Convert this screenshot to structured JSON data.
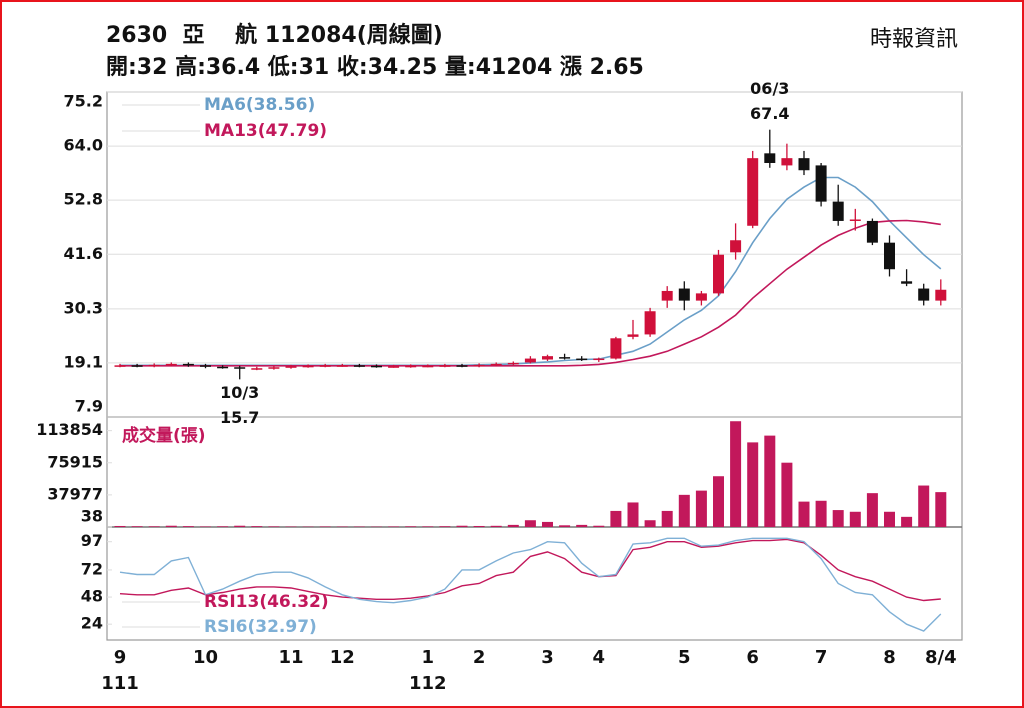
{
  "header": {
    "title": "2630  亞    航 112084(周線圖)",
    "stats": "開:32 高:36.4 低:31 收:34.25 量:41204 漲 2.65",
    "source": "時報資訊"
  },
  "chart_data": [
    {
      "type": "candlestick",
      "categories": [
        "9",
        null,
        null,
        null,
        null,
        "10",
        null,
        null,
        null,
        null,
        "11",
        null,
        null,
        "12",
        null,
        null,
        null,
        null,
        "1",
        null,
        null,
        "2",
        null,
        null,
        null,
        "3",
        null,
        null,
        "4",
        null,
        null,
        null,
        null,
        "5",
        null,
        null,
        null,
        "6",
        null,
        null,
        null,
        "7",
        null,
        null,
        null,
        "8",
        null,
        null,
        "8/4"
      ],
      "category_years": [
        "111",
        null,
        null,
        null,
        null,
        null,
        null,
        null,
        null,
        null,
        null,
        null,
        null,
        null,
        null,
        null,
        null,
        null,
        "112",
        null,
        null,
        null,
        null,
        null,
        null,
        null,
        null,
        null,
        null,
        null,
        null,
        null,
        null,
        null,
        null,
        null,
        null,
        null,
        null,
        null,
        null,
        null,
        null,
        null,
        null,
        null,
        null,
        null,
        null
      ],
      "open": [
        18.5,
        18.6,
        18.5,
        18.7,
        18.9,
        18.6,
        18.3,
        18.2,
        17.9,
        18.0,
        18.2,
        18.4,
        18.5,
        18.6,
        18.6,
        18.5,
        18.4,
        18.4,
        18.5,
        18.5,
        18.6,
        18.5,
        18.7,
        18.9,
        19.2,
        19.8,
        20.3,
        20.0,
        19.8,
        20.0,
        24.5,
        25.0,
        32.0,
        34.5,
        32.0,
        33.5,
        42.0,
        47.5,
        62.5,
        60.0,
        61.5,
        60.0,
        52.5,
        48.5,
        48.5,
        44.0,
        36.0,
        34.5,
        32
      ],
      "high": [
        18.9,
        18.9,
        19.0,
        19.2,
        19.2,
        18.9,
        18.6,
        18.5,
        18.3,
        18.5,
        18.7,
        18.8,
        18.9,
        18.9,
        18.9,
        18.8,
        18.7,
        18.8,
        18.8,
        18.9,
        18.9,
        19.0,
        19.2,
        19.4,
        20.5,
        20.8,
        21.0,
        20.5,
        20.2,
        24.5,
        28.0,
        30.5,
        35.0,
        36.0,
        34.0,
        42.5,
        48.0,
        63.0,
        67.4,
        64.5,
        63.0,
        60.5,
        56.0,
        51.0,
        49.0,
        45.5,
        38.5,
        35.5,
        36.4
      ],
      "low": [
        18.2,
        18.2,
        18.2,
        18.4,
        18.3,
        18.0,
        17.9,
        15.7,
        17.6,
        17.7,
        17.9,
        18.1,
        18.2,
        18.3,
        18.2,
        18.1,
        18.1,
        18.1,
        18.2,
        18.2,
        18.2,
        18.2,
        18.4,
        18.6,
        19.0,
        19.5,
        19.8,
        19.5,
        19.3,
        19.8,
        24.0,
        24.5,
        30.5,
        30.0,
        31.0,
        33.0,
        40.5,
        47.0,
        59.5,
        59.0,
        58.0,
        51.5,
        47.5,
        46.5,
        43.5,
        37.0,
        35.0,
        31.0,
        31
      ],
      "close": [
        18.6,
        18.5,
        18.7,
        18.9,
        18.6,
        18.3,
        18.2,
        17.9,
        18.0,
        18.2,
        18.4,
        18.5,
        18.6,
        18.6,
        18.5,
        18.4,
        18.4,
        18.5,
        18.5,
        18.6,
        18.5,
        18.7,
        18.9,
        19.1,
        20.0,
        20.5,
        20.2,
        19.8,
        20.0,
        24.2,
        25.0,
        29.8,
        34.0,
        32.0,
        33.5,
        41.5,
        44.5,
        61.5,
        60.5,
        61.5,
        59.0,
        52.5,
        48.5,
        48.8,
        44.0,
        38.5,
        35.5,
        32.0,
        34.25
      ],
      "up_color": "#d0103a",
      "down_color": "#111111",
      "series": [
        {
          "name": "MA6(38.56)",
          "color": "#6a9fc8",
          "values": [
            18.6,
            18.6,
            18.6,
            18.6,
            18.6,
            18.6,
            18.6,
            18.6,
            18.6,
            18.6,
            18.6,
            18.6,
            18.6,
            18.6,
            18.6,
            18.6,
            18.6,
            18.6,
            18.6,
            18.6,
            18.6,
            18.7,
            18.8,
            18.9,
            19.1,
            19.3,
            19.6,
            19.8,
            19.9,
            20.7,
            21.5,
            23,
            25.5,
            28,
            30,
            33,
            38,
            44,
            49,
            53,
            55.5,
            57.5,
            57.5,
            55.5,
            52.5,
            48.5,
            45,
            41.5,
            38.56
          ]
        },
        {
          "name": "MA13(47.79)",
          "color": "#c2185b",
          "values": [
            18.5,
            18.5,
            18.5,
            18.5,
            18.5,
            18.5,
            18.5,
            18.5,
            18.5,
            18.5,
            18.5,
            18.5,
            18.5,
            18.5,
            18.5,
            18.5,
            18.5,
            18.5,
            18.5,
            18.5,
            18.5,
            18.5,
            18.5,
            18.5,
            18.5,
            18.5,
            18.5,
            18.6,
            18.8,
            19.2,
            19.8,
            20.5,
            21.5,
            23,
            24.5,
            26.5,
            29,
            32.5,
            35.5,
            38.5,
            41,
            43.5,
            45.5,
            47,
            48.2,
            48.5,
            48.6,
            48.3,
            47.79
          ]
        }
      ],
      "annotations": [
        {
          "date": "06/3",
          "price": 67.4,
          "at": "high"
        },
        {
          "date": "10/3",
          "price": 15.7,
          "at": "low"
        }
      ],
      "ylim": [
        7.9,
        75.2
      ],
      "yticks": [
        7.9,
        19.1,
        30.3,
        41.6,
        52.8,
        {
          "value": 64,
          "label": "64.0"
        },
        75.2
      ],
      "grid": true
    },
    {
      "type": "bar",
      "title": "成交量(張)",
      "color": "#c2185b",
      "values": [
        1200,
        900,
        800,
        1500,
        1000,
        600,
        800,
        1500,
        1000,
        700,
        500,
        400,
        600,
        500,
        500,
        400,
        600,
        800,
        700,
        900,
        1500,
        1200,
        1400,
        2500,
        8000,
        6000,
        2000,
        2500,
        1500,
        19000,
        29000,
        8000,
        19000,
        38000,
        43000,
        60000,
        125000,
        100000,
        108000,
        76000,
        30000,
        31000,
        20000,
        18000,
        40000,
        18000,
        12000,
        49000,
        41204
      ],
      "ylim": [
        0,
        130000
      ],
      "yticks": [
        38,
        37977,
        75915,
        113854
      ]
    },
    {
      "type": "line",
      "series": [
        {
          "name": "RSI13(46.32)",
          "color": "#c2185b",
          "values": [
            51,
            50,
            50,
            54,
            56,
            50,
            52,
            55,
            57,
            57,
            56,
            53,
            50,
            48,
            47,
            46,
            46,
            47,
            49,
            52,
            58,
            60,
            67,
            70,
            84,
            88,
            82,
            70,
            66,
            67,
            90,
            92,
            97,
            97,
            92,
            93,
            96,
            98,
            98,
            99,
            96,
            85,
            72,
            66,
            62,
            55,
            48,
            45,
            46.32
          ]
        },
        {
          "name": "RSI6(32.97)",
          "color": "#7fb0d6",
          "values": [
            70,
            68,
            68,
            80,
            83,
            50,
            55,
            62,
            68,
            70,
            70,
            65,
            57,
            50,
            46,
            44,
            43,
            45,
            48,
            55,
            72,
            72,
            80,
            87,
            90,
            97,
            96,
            78,
            66,
            68,
            95,
            96,
            100,
            100,
            93,
            94,
            98,
            100,
            100,
            100,
            97,
            82,
            60,
            52,
            50,
            35,
            24,
            18,
            32.97
          ]
        }
      ],
      "ylim": [
        10,
        110
      ],
      "yticks": [
        24,
        48,
        72,
        97
      ]
    }
  ]
}
